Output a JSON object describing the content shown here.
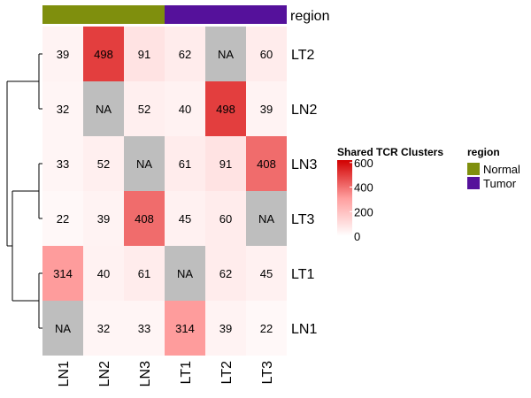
{
  "chart_data": {
    "type": "heatmap",
    "rows": [
      "LT2",
      "LN2",
      "LN3",
      "LT3",
      "LT1",
      "LN1"
    ],
    "columns": [
      "LN1",
      "LN2",
      "LN3",
      "LT1",
      "LT2",
      "LT3"
    ],
    "values": [
      [
        39,
        498,
        91,
        62,
        null,
        60
      ],
      [
        32,
        null,
        52,
        40,
        498,
        39
      ],
      [
        33,
        52,
        null,
        61,
        91,
        408
      ],
      [
        22,
        39,
        408,
        45,
        60,
        null
      ],
      [
        314,
        40,
        61,
        null,
        62,
        45
      ],
      [
        null,
        32,
        33,
        314,
        39,
        22
      ]
    ],
    "na_label": "NA",
    "na_color": "#bebebe",
    "color_scale": {
      "title": "Shared TCR Clusters",
      "low_color": "#ffffff",
      "high_color": "#d10000",
      "min": 0,
      "max": 620,
      "ticks": [
        0,
        200,
        400,
        600
      ]
    },
    "column_annotation": {
      "title": "region",
      "values": [
        "Normal",
        "Normal",
        "Normal",
        "Tumor",
        "Tumor",
        "Tumor"
      ],
      "legend_title": "region",
      "levels": [
        {
          "label": "Normal",
          "color": "#7f8f0d"
        },
        {
          "label": "Tumor",
          "color": "#55119b"
        }
      ]
    },
    "row_dendrogram": true,
    "legend_position": "right"
  }
}
